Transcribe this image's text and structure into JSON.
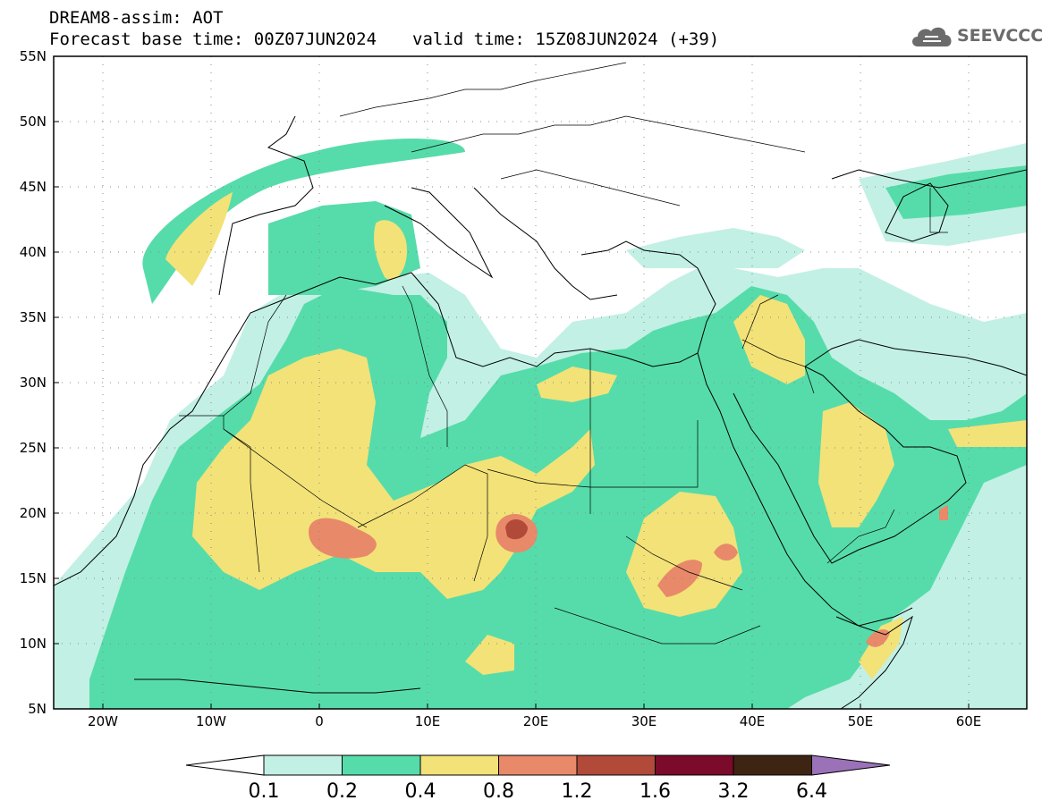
{
  "header": {
    "title_line1": "DREAM8-assim: AOT",
    "forecast_base": "Forecast base time: 00Z07JUN2024",
    "valid_time": "valid time: 15Z08JUN2024 (+39)"
  },
  "logo": {
    "text": "SEEVCCC",
    "icon": "cloud-icon"
  },
  "map": {
    "variable": "AOT",
    "lon_range": [
      -25,
      65
    ],
    "lat_range": [
      5,
      55
    ],
    "lat_labels": [
      "55N",
      "50N",
      "45N",
      "40N",
      "35N",
      "30N",
      "25N",
      "20N",
      "15N",
      "10N",
      "5N"
    ],
    "lon_labels": [
      "20W",
      "10W",
      "0",
      "10E",
      "20E",
      "30E",
      "40E",
      "50E",
      "60E"
    ],
    "grid": "dotted",
    "max_region": "Chad (~18N, 18E) around 1.2-1.6"
  },
  "colorbar": {
    "levels": [
      "0.1",
      "0.2",
      "0.4",
      "0.8",
      "1.2",
      "1.6",
      "3.2",
      "6.4"
    ],
    "colors": {
      "below": "#ffffff",
      "c1": "#c2f0e4",
      "c2": "#56dcaa",
      "c3": "#f3e278",
      "c4": "#e8896a",
      "c5": "#b24a3a",
      "c6": "#7c0a2a",
      "c7": "#3d2413",
      "above": "#9b72b8"
    }
  }
}
